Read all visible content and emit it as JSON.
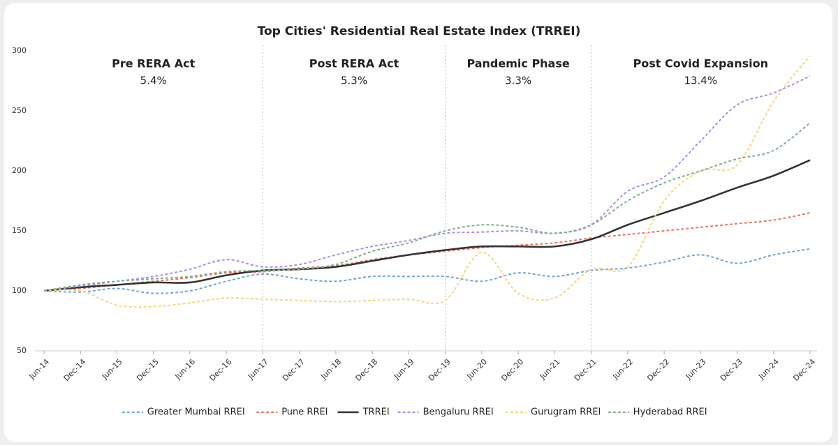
{
  "chart_data": {
    "type": "line",
    "title": "Top Cities' Residential Real Estate Index (TRREI)",
    "categories": [
      "Jun-14",
      "Dec-14",
      "Jun-15",
      "Dec-15",
      "Jun-16",
      "Dec-16",
      "Jun-17",
      "Dec-17",
      "Jun-18",
      "Dec-18",
      "Jun-19",
      "Dec-19",
      "Jun-20",
      "Dec-20",
      "Jun-21",
      "Dec-21",
      "Jun-22",
      "Dec-22",
      "Jun-23",
      "Dec-23",
      "Jun-24",
      "Dec-24"
    ],
    "ylim": [
      50,
      300
    ],
    "yticks": [
      50,
      100,
      150,
      200,
      250,
      300
    ],
    "grid": false,
    "legend": "bottom",
    "phases": [
      {
        "name": "Pre RERA Act",
        "value": 5.4,
        "label": "5.4%"
      },
      {
        "name": "Post RERA Act",
        "value": 5.3,
        "label": "5.3%"
      },
      {
        "name": "Pandemic Phase",
        "value": 3.3,
        "label": "3.3%"
      },
      {
        "name": "Post Covid Expansion",
        "value": 13.4,
        "label": "13.4%"
      }
    ],
    "series": [
      {
        "name": "Greater Mumbai RREI",
        "color": "#6fa3dc",
        "dashed": true,
        "values": [
          100,
          99,
          102,
          98,
          100,
          108,
          114,
          110,
          108,
          112,
          112,
          112,
          108,
          115,
          112,
          117,
          119,
          124,
          130,
          123,
          130,
          135
        ]
      },
      {
        "name": "Pune RREI",
        "color": "#f07260",
        "dashed": true,
        "values": [
          100,
          102,
          105,
          108,
          111,
          115,
          116,
          119,
          121,
          126,
          130,
          133,
          136,
          138,
          140,
          144,
          147,
          150,
          153,
          156,
          159,
          165
        ]
      },
      {
        "name": "TRREI",
        "color": "#333333",
        "dashed": false,
        "values": [
          100,
          103,
          105,
          107,
          107,
          113,
          117,
          118,
          120,
          125,
          130,
          134,
          137,
          137,
          137,
          143,
          155,
          165,
          175,
          186,
          196,
          209
        ]
      },
      {
        "name": "Bengaluru RREI",
        "color": "#a98cf0",
        "dashed": true,
        "values": [
          100,
          104,
          108,
          112,
          118,
          126,
          120,
          122,
          130,
          137,
          142,
          148,
          149,
          150,
          148,
          155,
          183,
          195,
          225,
          255,
          265,
          279
        ]
      },
      {
        "name": "Gurugram RREI",
        "color": "#f5d77a",
        "dashed": true,
        "values": [
          100,
          100,
          88,
          87,
          90,
          94,
          93,
          92,
          91,
          92,
          93,
          92,
          132,
          98,
          94,
          118,
          120,
          175,
          200,
          205,
          258,
          296
        ]
      },
      {
        "name": "Hyderabad RREI",
        "color": "#7fb08a",
        "dashed": true,
        "values": [
          100,
          105,
          108,
          110,
          112,
          116,
          117,
          118,
          122,
          133,
          140,
          150,
          155,
          153,
          148,
          155,
          175,
          190,
          200,
          210,
          217,
          240
        ]
      }
    ]
  }
}
